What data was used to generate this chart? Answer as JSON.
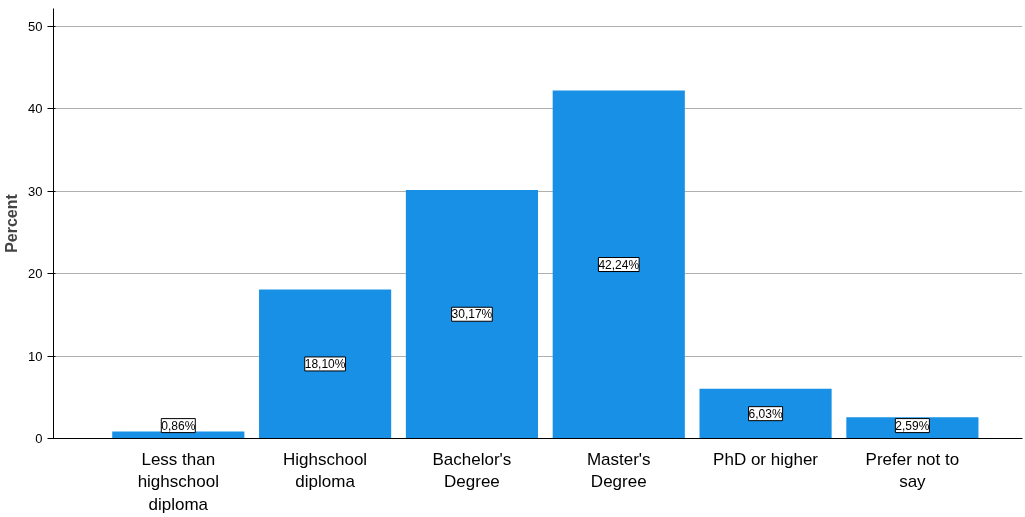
{
  "chart_data": {
    "type": "bar",
    "ylabel": "Percent",
    "categories": [
      "Less than highschool diploma",
      "Highschool diploma",
      "Bachelor's Degree",
      "Master's Degree",
      "PhD or higher",
      "Prefer not to say"
    ],
    "values": [
      0.86,
      18.1,
      30.17,
      42.24,
      6.03,
      2.59
    ],
    "value_labels": [
      "0,86%",
      "18,10%",
      "30,17%",
      "42,24%",
      "6,03%",
      "2,59%"
    ],
    "color": "#1790e6",
    "ylim": [
      0,
      52.2
    ],
    "yticks": [
      0,
      10,
      20,
      30,
      40,
      50
    ],
    "grid": "y"
  }
}
